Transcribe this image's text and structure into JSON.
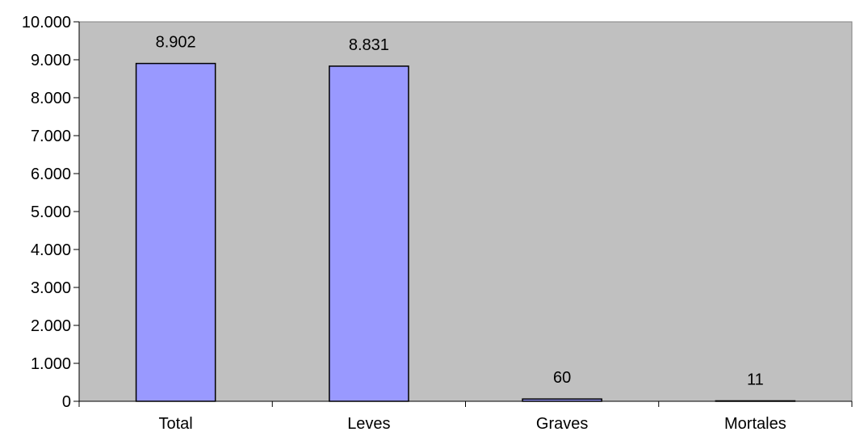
{
  "chart_data": {
    "type": "bar",
    "categories": [
      "Total",
      "Leves",
      "Graves",
      "Mortales"
    ],
    "values": [
      8902,
      8831,
      60,
      11
    ],
    "data_labels": [
      "8.902",
      "8.831",
      "60",
      "11"
    ],
    "ylim": [
      0,
      10000
    ],
    "yticks": [
      0,
      1000,
      2000,
      3000,
      4000,
      5000,
      6000,
      7000,
      8000,
      9000,
      10000
    ],
    "ytick_labels": [
      "0",
      "1.000",
      "2.000",
      "3.000",
      "4.000",
      "5.000",
      "6.000",
      "7.000",
      "8.000",
      "9.000",
      "10.000"
    ],
    "title": "",
    "xlabel": "",
    "ylabel": "",
    "grid": false,
    "legend": "none",
    "colors": {
      "plot_background": "#c0c0c0",
      "bar_fill": "#9999ff",
      "bar_stroke": "#000000"
    }
  }
}
